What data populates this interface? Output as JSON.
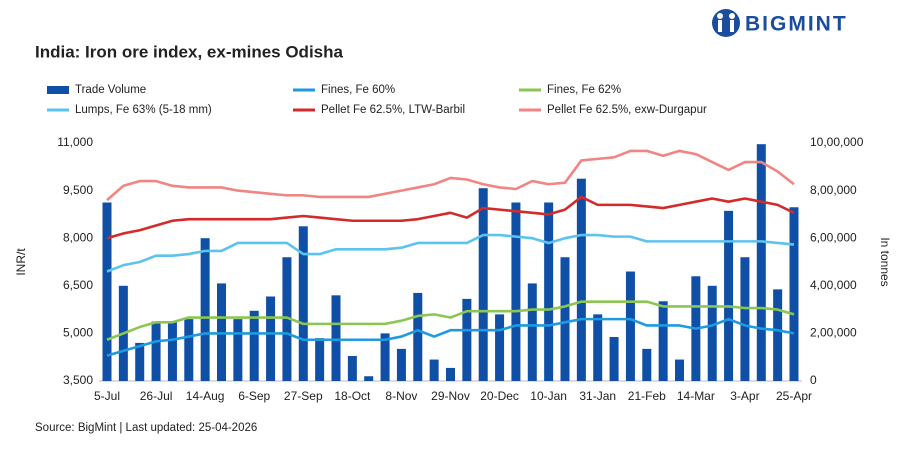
{
  "brand": "BIGMINT",
  "chart_data": {
    "type": "combo",
    "title": "India: Iron ore index, ex-mines Odisha",
    "source": "Source: BigMint | Last updated: 25-04-2026",
    "ylabel": "INR/t",
    "y2label": "In tonnes",
    "categories": [
      "5-Jul",
      null,
      null,
      "26-Jul",
      null,
      null,
      "14-Aug",
      null,
      null,
      "6-Sep",
      null,
      null,
      "27-Sep",
      null,
      null,
      "18-Oct",
      null,
      null,
      "8-Nov",
      null,
      null,
      "29-Nov",
      null,
      null,
      "20-Dec",
      null,
      null,
      "10-Jan",
      null,
      null,
      "31-Jan",
      null,
      null,
      "21-Feb",
      null,
      null,
      "14-Mar",
      null,
      null,
      "3-Apr",
      null,
      null,
      "25-Apr"
    ],
    "ylim": [
      3500,
      11000
    ],
    "yticks": [
      {
        "value": 3500,
        "label": "3,500"
      },
      {
        "value": 5000,
        "label": "5,000"
      },
      {
        "value": 6500,
        "label": "6,500"
      },
      {
        "value": 8000,
        "label": "8,000"
      },
      {
        "value": 9500,
        "label": "9,500"
      },
      {
        "value": 11000,
        "label": "11,000"
      }
    ],
    "y2lim": [
      0,
      1000000
    ],
    "y2ticks": [
      0,
      {
        "value": 200000,
        "label": "2,00,000"
      },
      {
        "value": 400000,
        "label": "4,00,000"
      },
      {
        "value": 600000,
        "label": "6,00,000"
      },
      {
        "value": 800000,
        "label": "8,00,000"
      },
      {
        "value": 1000000,
        "label": "10,00,000"
      }
    ],
    "series": [
      {
        "name": "Trade Volume",
        "mark": "bar",
        "axis": "y2",
        "color": "#0f4fa5",
        "values": [
          750000,
          400000,
          160000,
          250000,
          250000,
          260000,
          600000,
          410000,
          260000,
          295000,
          355000,
          520000,
          650000,
          180000,
          360000,
          105000,
          20000,
          200000,
          135000,
          370000,
          90000,
          55000,
          345000,
          810000,
          280000,
          750000,
          410000,
          750000,
          520000,
          850000,
          280000,
          185000,
          460000,
          135000,
          335000,
          90000,
          440000,
          400000,
          715000,
          520000,
          995000,
          385000,
          730000
        ]
      },
      {
        "name": "Fines, Fe 60%",
        "mark": "line",
        "color": "#1f9ae0",
        "values": [
          4300,
          4450,
          4600,
          4750,
          4800,
          4900,
          5000,
          5000,
          5000,
          5000,
          5000,
          5000,
          4800,
          4800,
          4800,
          4800,
          4800,
          4800,
          4900,
          5100,
          4900,
          5100,
          5100,
          5100,
          5100,
          5250,
          5250,
          5250,
          5350,
          5450,
          5450,
          5450,
          5450,
          5250,
          5250,
          5250,
          5150,
          5250,
          5450,
          5250,
          5150,
          5100,
          5000
        ]
      },
      {
        "name": "Fines, Fe 62%",
        "mark": "line",
        "color": "#8cc652",
        "values": [
          4800,
          5000,
          5200,
          5350,
          5350,
          5500,
          5500,
          5500,
          5500,
          5500,
          5500,
          5500,
          5300,
          5300,
          5300,
          5300,
          5300,
          5300,
          5400,
          5550,
          5600,
          5500,
          5700,
          5700,
          5700,
          5700,
          5750,
          5750,
          5850,
          6000,
          6000,
          6000,
          6000,
          6000,
          5850,
          5850,
          5850,
          5850,
          5850,
          5800,
          5800,
          5750,
          5600
        ]
      },
      {
        "name": "Lumps, Fe 63% (5-18 mm)",
        "mark": "line",
        "color": "#5cc3ef",
        "values": [
          6950,
          7150,
          7250,
          7450,
          7450,
          7500,
          7600,
          7600,
          7850,
          7850,
          7850,
          7850,
          7500,
          7500,
          7650,
          7650,
          7650,
          7650,
          7700,
          7850,
          7850,
          7850,
          7850,
          8100,
          8100,
          8050,
          8000,
          7850,
          8000,
          8100,
          8100,
          8050,
          8050,
          7900,
          7900,
          7900,
          7900,
          7900,
          7900,
          7900,
          7900,
          7850,
          7800
        ]
      },
      {
        "name": "Pellet Fe 62.5%, LTW-Barbil",
        "mark": "line",
        "color": "#d42a2a",
        "values": [
          8000,
          8150,
          8250,
          8400,
          8550,
          8600,
          8600,
          8600,
          8600,
          8600,
          8600,
          8650,
          8700,
          8650,
          8600,
          8550,
          8550,
          8550,
          8550,
          8600,
          8700,
          8800,
          8650,
          8950,
          8900,
          8850,
          8800,
          8750,
          8900,
          9300,
          9050,
          9050,
          9050,
          9000,
          8950,
          9050,
          9150,
          9250,
          9150,
          9250,
          9150,
          9050,
          8800
        ]
      },
      {
        "name": "Pellet Fe  62.5%, exw-Durgapur",
        "mark": "line",
        "color": "#f08683",
        "values": [
          9200,
          9650,
          9800,
          9800,
          9650,
          9600,
          9600,
          9600,
          9500,
          9450,
          9400,
          9350,
          9350,
          9300,
          9300,
          9300,
          9300,
          9400,
          9500,
          9600,
          9700,
          9900,
          9850,
          9700,
          9600,
          9550,
          9800,
          9700,
          9750,
          10450,
          10500,
          10550,
          10750,
          10750,
          10600,
          10750,
          10650,
          10400,
          10150,
          10400,
          10400,
          10100,
          9700
        ]
      }
    ]
  }
}
